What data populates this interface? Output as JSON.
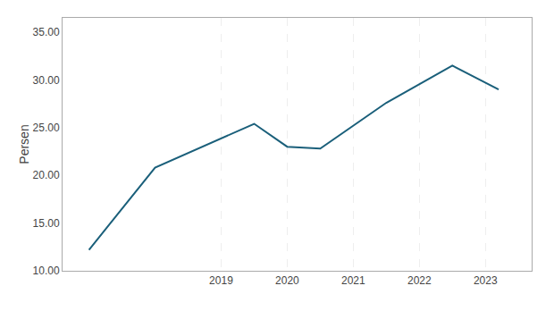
{
  "chart_data": {
    "type": "line",
    "y_label": "Persen",
    "x": [
      2017.0,
      2018.0,
      2019.5,
      2020.0,
      2020.5,
      2021.5,
      2022.5,
      2023.2
    ],
    "values": [
      12.2,
      20.8,
      25.4,
      23.0,
      22.8,
      27.6,
      31.5,
      29.0
    ],
    "color": "#1a5f7a",
    "xlim": [
      2016.6,
      2023.7
    ],
    "xticks": [
      2019,
      2020,
      2021,
      2022,
      2023
    ],
    "ylim": [
      10.0,
      36.5
    ],
    "yticks": [
      {
        "value": 10.0,
        "label": "10.00"
      },
      {
        "value": 15.0,
        "label": "15.00"
      },
      {
        "value": 20.0,
        "label": "20.00"
      },
      {
        "value": 25.0,
        "label": "25.00"
      },
      {
        "value": 30.0,
        "label": "30.00"
      },
      {
        "value": 35.0,
        "label": "35.00"
      }
    ],
    "grid": "x"
  }
}
